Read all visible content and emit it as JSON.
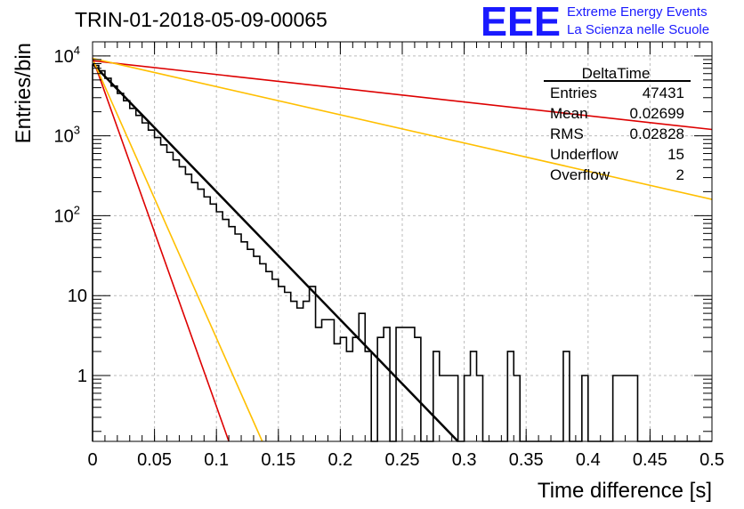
{
  "logo": {
    "mark": "EEE",
    "line1": "Extreme Energy Events",
    "line2": "La Scienza nelle Scuole",
    "color": "#1a1aff"
  },
  "chart_data": {
    "type": "histogram",
    "title": "TRIN-01-2018-05-09-00065",
    "xlabel": "Time difference [s]",
    "ylabel": "Entries/bin",
    "xlim": [
      0,
      0.5
    ],
    "ylim": [
      0.15,
      15000
    ],
    "yscale": "log",
    "grid": true,
    "x_ticks": [
      {
        "v": 0,
        "label": "0"
      },
      {
        "v": 0.05,
        "label": "0.05"
      },
      {
        "v": 0.1,
        "label": "0.1"
      },
      {
        "v": 0.15,
        "label": "0.15"
      },
      {
        "v": 0.2,
        "label": "0.2"
      },
      {
        "v": 0.25,
        "label": "0.25"
      },
      {
        "v": 0.3,
        "label": "0.3"
      },
      {
        "v": 0.35,
        "label": "0.35"
      },
      {
        "v": 0.4,
        "label": "0.4"
      },
      {
        "v": 0.45,
        "label": "0.45"
      },
      {
        "v": 0.5,
        "label": "0.5"
      }
    ],
    "y_ticks": [
      {
        "v": 1,
        "label": "1"
      },
      {
        "v": 10,
        "label": "10"
      },
      {
        "v": 100,
        "label": "10",
        "exp": "2"
      },
      {
        "v": 1000,
        "label": "10",
        "exp": "3"
      },
      {
        "v": 10000,
        "label": "10",
        "exp": "4"
      }
    ],
    "histogram": {
      "bin_width": 0.005,
      "values": [
        7600,
        6500,
        5250,
        4200,
        3400,
        2750,
        2200,
        1800,
        1450,
        1180,
        950,
        770,
        620,
        500,
        410,
        330,
        260,
        215,
        172,
        140,
        112,
        90,
        73,
        59,
        47,
        38,
        31,
        25,
        20,
        16,
        13,
        11,
        8.5,
        7,
        8.5,
        13,
        4,
        5,
        5,
        2.5,
        3,
        2,
        3,
        6,
        2,
        0,
        3,
        4,
        0,
        4,
        4,
        4,
        3,
        0,
        0,
        2,
        1,
        1,
        1,
        0,
        1,
        2,
        1,
        0,
        0,
        0,
        0,
        2,
        1,
        0,
        0,
        0,
        0,
        0,
        0,
        0,
        2,
        0,
        0,
        1,
        0,
        0,
        0,
        0,
        1,
        1,
        1,
        1,
        0,
        0,
        0,
        0,
        0,
        0,
        0,
        0,
        0,
        0,
        0,
        0
      ]
    },
    "fits": [
      {
        "color": "#000000",
        "width": 2.5,
        "points": [
          [
            0,
            8000
          ],
          [
            0.295,
            0.15
          ]
        ]
      },
      {
        "color": "#dd0000",
        "width": 1.6,
        "points": [
          [
            0,
            9500
          ],
          [
            0.11,
            0.15
          ]
        ]
      },
      {
        "color": "#ffbf00",
        "width": 1.6,
        "points": [
          [
            0,
            9200
          ],
          [
            0.137,
            0.15
          ]
        ]
      },
      {
        "color": "#dd0000",
        "width": 1.6,
        "points": [
          [
            0,
            8700
          ],
          [
            0.5,
            1200
          ]
        ]
      },
      {
        "color": "#ffbf00",
        "width": 1.6,
        "points": [
          [
            0,
            9300
          ],
          [
            0.5,
            160
          ]
        ]
      }
    ],
    "stats": {
      "title": "DeltaTime",
      "rows": [
        {
          "label": "Entries",
          "value": "47431"
        },
        {
          "label": "Mean",
          "value": "0.02699"
        },
        {
          "label": "RMS",
          "value": "0.02828"
        },
        {
          "label": "Underflow",
          "value": "15"
        },
        {
          "label": "Overflow",
          "value": "2"
        }
      ]
    }
  }
}
